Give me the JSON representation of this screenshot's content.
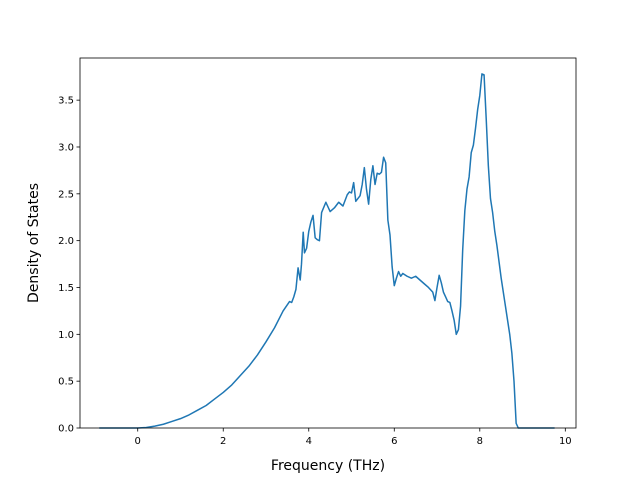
{
  "chart_data": {
    "type": "line",
    "title": "",
    "xlabel": "Frequency (THz)",
    "ylabel": "Density of States",
    "xlim": [
      -1.35,
      10.25
    ],
    "ylim": [
      0,
      3.95
    ],
    "x_ticks": [
      0,
      2,
      4,
      6,
      8,
      10
    ],
    "y_ticks": [
      0.0,
      0.5,
      1.0,
      1.5,
      2.0,
      2.5,
      3.0,
      3.5
    ],
    "x_tick_labels": [
      "0",
      "2",
      "4",
      "6",
      "8",
      "10"
    ],
    "y_tick_labels": [
      "0.0",
      "0.5",
      "1.0",
      "1.5",
      "2.0",
      "2.5",
      "3.0",
      "3.5"
    ],
    "grid": false,
    "legend": "none",
    "series": [
      {
        "color": "#1f77b4",
        "x": [
          -0.9,
          -0.6,
          -0.3,
          0.0,
          0.2,
          0.4,
          0.6,
          0.8,
          1.0,
          1.2,
          1.4,
          1.6,
          1.8,
          2.0,
          2.2,
          2.4,
          2.6,
          2.8,
          3.0,
          3.2,
          3.4,
          3.55,
          3.6,
          3.65,
          3.7,
          3.75,
          3.8,
          3.83,
          3.87,
          3.9,
          3.95,
          4.0,
          4.05,
          4.1,
          4.15,
          4.2,
          4.25,
          4.3,
          4.4,
          4.5,
          4.6,
          4.7,
          4.8,
          4.9,
          4.95,
          5.0,
          5.05,
          5.1,
          5.2,
          5.25,
          5.3,
          5.35,
          5.4,
          5.45,
          5.5,
          5.55,
          5.6,
          5.65,
          5.7,
          5.75,
          5.8,
          5.85,
          5.9,
          5.95,
          6.0,
          6.05,
          6.1,
          6.15,
          6.2,
          6.3,
          6.4,
          6.5,
          6.6,
          6.7,
          6.8,
          6.9,
          6.95,
          7.0,
          7.05,
          7.1,
          7.15,
          7.2,
          7.25,
          7.3,
          7.35,
          7.4,
          7.45,
          7.5,
          7.55,
          7.6,
          7.65,
          7.7,
          7.75,
          7.8,
          7.85,
          7.9,
          7.95,
          8.0,
          8.05,
          8.1,
          8.15,
          8.2,
          8.25,
          8.3,
          8.35,
          8.4,
          8.5,
          8.6,
          8.7,
          8.75,
          8.8,
          8.85,
          8.9,
          9.0,
          9.5,
          9.75
        ],
        "y": [
          0,
          0,
          0,
          0,
          0.005,
          0.02,
          0.04,
          0.07,
          0.1,
          0.14,
          0.19,
          0.24,
          0.31,
          0.38,
          0.46,
          0.56,
          0.66,
          0.78,
          0.92,
          1.07,
          1.25,
          1.35,
          1.34,
          1.4,
          1.48,
          1.71,
          1.58,
          1.75,
          2.09,
          1.87,
          1.92,
          2.1,
          2.2,
          2.27,
          2.03,
          2.01,
          2.0,
          2.3,
          2.41,
          2.31,
          2.35,
          2.41,
          2.37,
          2.49,
          2.52,
          2.51,
          2.62,
          2.42,
          2.48,
          2.6,
          2.78,
          2.55,
          2.39,
          2.65,
          2.8,
          2.6,
          2.72,
          2.71,
          2.73,
          2.89,
          2.83,
          2.22,
          2.06,
          1.72,
          1.52,
          1.6,
          1.67,
          1.62,
          1.65,
          1.62,
          1.6,
          1.62,
          1.58,
          1.54,
          1.5,
          1.45,
          1.36,
          1.5,
          1.63,
          1.55,
          1.45,
          1.4,
          1.35,
          1.34,
          1.25,
          1.15,
          1.0,
          1.05,
          1.3,
          1.9,
          2.32,
          2.55,
          2.68,
          2.94,
          3.02,
          3.2,
          3.4,
          3.55,
          3.78,
          3.77,
          3.3,
          2.8,
          2.45,
          2.3,
          2.1,
          1.95,
          1.6,
          1.3,
          1.0,
          0.8,
          0.5,
          0.05,
          0,
          0,
          0,
          0
        ]
      }
    ]
  }
}
